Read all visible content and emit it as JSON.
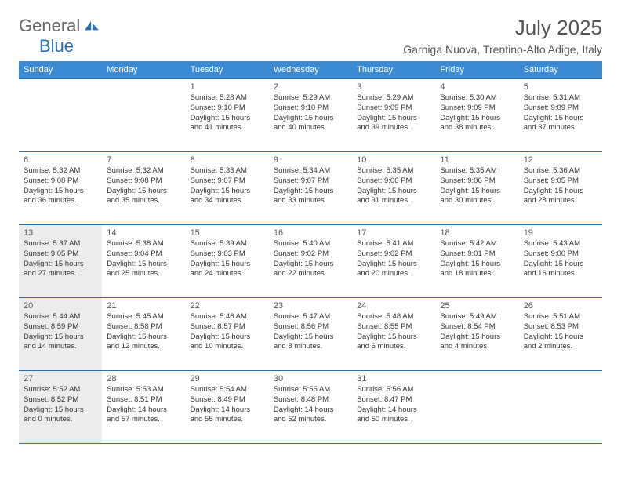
{
  "brand": {
    "part1": "General",
    "part2": "Blue"
  },
  "title": "July 2025",
  "location": "Garniga Nuova, Trentino-Alto Adige, Italy",
  "colors": {
    "header_bg": "#3b8bd4",
    "header_border": "#2a6fb5",
    "text": "#333333",
    "muted": "#555555",
    "shaded": "#ececec"
  },
  "typography": {
    "title_fontsize": 26,
    "location_fontsize": 14,
    "dayheader_fontsize": 11,
    "daynum_fontsize": 11,
    "cell_fontsize": 9.5
  },
  "day_headers": [
    "Sunday",
    "Monday",
    "Tuesday",
    "Wednesday",
    "Thursday",
    "Friday",
    "Saturday"
  ],
  "weeks": [
    [
      {
        "day": "",
        "lines": [],
        "shaded": false
      },
      {
        "day": "",
        "lines": [],
        "shaded": false
      },
      {
        "day": "1",
        "lines": [
          "Sunrise: 5:28 AM",
          "Sunset: 9:10 PM",
          "Daylight: 15 hours",
          "and 41 minutes."
        ],
        "shaded": false
      },
      {
        "day": "2",
        "lines": [
          "Sunrise: 5:29 AM",
          "Sunset: 9:10 PM",
          "Daylight: 15 hours",
          "and 40 minutes."
        ],
        "shaded": false
      },
      {
        "day": "3",
        "lines": [
          "Sunrise: 5:29 AM",
          "Sunset: 9:09 PM",
          "Daylight: 15 hours",
          "and 39 minutes."
        ],
        "shaded": false
      },
      {
        "day": "4",
        "lines": [
          "Sunrise: 5:30 AM",
          "Sunset: 9:09 PM",
          "Daylight: 15 hours",
          "and 38 minutes."
        ],
        "shaded": false
      },
      {
        "day": "5",
        "lines": [
          "Sunrise: 5:31 AM",
          "Sunset: 9:09 PM",
          "Daylight: 15 hours",
          "and 37 minutes."
        ],
        "shaded": false
      }
    ],
    [
      {
        "day": "6",
        "lines": [
          "Sunrise: 5:32 AM",
          "Sunset: 9:08 PM",
          "Daylight: 15 hours",
          "and 36 minutes."
        ],
        "shaded": false
      },
      {
        "day": "7",
        "lines": [
          "Sunrise: 5:32 AM",
          "Sunset: 9:08 PM",
          "Daylight: 15 hours",
          "and 35 minutes."
        ],
        "shaded": false
      },
      {
        "day": "8",
        "lines": [
          "Sunrise: 5:33 AM",
          "Sunset: 9:07 PM",
          "Daylight: 15 hours",
          "and 34 minutes."
        ],
        "shaded": false
      },
      {
        "day": "9",
        "lines": [
          "Sunrise: 5:34 AM",
          "Sunset: 9:07 PM",
          "Daylight: 15 hours",
          "and 33 minutes."
        ],
        "shaded": false
      },
      {
        "day": "10",
        "lines": [
          "Sunrise: 5:35 AM",
          "Sunset: 9:06 PM",
          "Daylight: 15 hours",
          "and 31 minutes."
        ],
        "shaded": false
      },
      {
        "day": "11",
        "lines": [
          "Sunrise: 5:35 AM",
          "Sunset: 9:06 PM",
          "Daylight: 15 hours",
          "and 30 minutes."
        ],
        "shaded": false
      },
      {
        "day": "12",
        "lines": [
          "Sunrise: 5:36 AM",
          "Sunset: 9:05 PM",
          "Daylight: 15 hours",
          "and 28 minutes."
        ],
        "shaded": false
      }
    ],
    [
      {
        "day": "13",
        "lines": [
          "Sunrise: 5:37 AM",
          "Sunset: 9:05 PM",
          "Daylight: 15 hours",
          "and 27 minutes."
        ],
        "shaded": true
      },
      {
        "day": "14",
        "lines": [
          "Sunrise: 5:38 AM",
          "Sunset: 9:04 PM",
          "Daylight: 15 hours",
          "and 25 minutes."
        ],
        "shaded": false
      },
      {
        "day": "15",
        "lines": [
          "Sunrise: 5:39 AM",
          "Sunset: 9:03 PM",
          "Daylight: 15 hours",
          "and 24 minutes."
        ],
        "shaded": false
      },
      {
        "day": "16",
        "lines": [
          "Sunrise: 5:40 AM",
          "Sunset: 9:02 PM",
          "Daylight: 15 hours",
          "and 22 minutes."
        ],
        "shaded": false
      },
      {
        "day": "17",
        "lines": [
          "Sunrise: 5:41 AM",
          "Sunset: 9:02 PM",
          "Daylight: 15 hours",
          "and 20 minutes."
        ],
        "shaded": false
      },
      {
        "day": "18",
        "lines": [
          "Sunrise: 5:42 AM",
          "Sunset: 9:01 PM",
          "Daylight: 15 hours",
          "and 18 minutes."
        ],
        "shaded": false
      },
      {
        "day": "19",
        "lines": [
          "Sunrise: 5:43 AM",
          "Sunset: 9:00 PM",
          "Daylight: 15 hours",
          "and 16 minutes."
        ],
        "shaded": false
      }
    ],
    [
      {
        "day": "20",
        "lines": [
          "Sunrise: 5:44 AM",
          "Sunset: 8:59 PM",
          "Daylight: 15 hours",
          "and 14 minutes."
        ],
        "shaded": true
      },
      {
        "day": "21",
        "lines": [
          "Sunrise: 5:45 AM",
          "Sunset: 8:58 PM",
          "Daylight: 15 hours",
          "and 12 minutes."
        ],
        "shaded": false
      },
      {
        "day": "22",
        "lines": [
          "Sunrise: 5:46 AM",
          "Sunset: 8:57 PM",
          "Daylight: 15 hours",
          "and 10 minutes."
        ],
        "shaded": false
      },
      {
        "day": "23",
        "lines": [
          "Sunrise: 5:47 AM",
          "Sunset: 8:56 PM",
          "Daylight: 15 hours",
          "and 8 minutes."
        ],
        "shaded": false
      },
      {
        "day": "24",
        "lines": [
          "Sunrise: 5:48 AM",
          "Sunset: 8:55 PM",
          "Daylight: 15 hours",
          "and 6 minutes."
        ],
        "shaded": false
      },
      {
        "day": "25",
        "lines": [
          "Sunrise: 5:49 AM",
          "Sunset: 8:54 PM",
          "Daylight: 15 hours",
          "and 4 minutes."
        ],
        "shaded": false
      },
      {
        "day": "26",
        "lines": [
          "Sunrise: 5:51 AM",
          "Sunset: 8:53 PM",
          "Daylight: 15 hours",
          "and 2 minutes."
        ],
        "shaded": false
      }
    ],
    [
      {
        "day": "27",
        "lines": [
          "Sunrise: 5:52 AM",
          "Sunset: 8:52 PM",
          "Daylight: 15 hours",
          "and 0 minutes."
        ],
        "shaded": true
      },
      {
        "day": "28",
        "lines": [
          "Sunrise: 5:53 AM",
          "Sunset: 8:51 PM",
          "Daylight: 14 hours",
          "and 57 minutes."
        ],
        "shaded": false
      },
      {
        "day": "29",
        "lines": [
          "Sunrise: 5:54 AM",
          "Sunset: 8:49 PM",
          "Daylight: 14 hours",
          "and 55 minutes."
        ],
        "shaded": false
      },
      {
        "day": "30",
        "lines": [
          "Sunrise: 5:55 AM",
          "Sunset: 8:48 PM",
          "Daylight: 14 hours",
          "and 52 minutes."
        ],
        "shaded": false
      },
      {
        "day": "31",
        "lines": [
          "Sunrise: 5:56 AM",
          "Sunset: 8:47 PM",
          "Daylight: 14 hours",
          "and 50 minutes."
        ],
        "shaded": false
      },
      {
        "day": "",
        "lines": [],
        "shaded": false
      },
      {
        "day": "",
        "lines": [],
        "shaded": false
      }
    ]
  ]
}
